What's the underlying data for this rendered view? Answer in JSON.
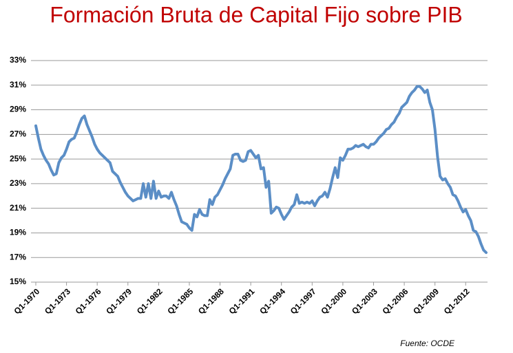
{
  "chart_data": {
    "type": "line",
    "title": "Formación Bruta de Capital Fijo sobre PIB",
    "annotation": "Fuente: OCDE",
    "title_color": "#c00000",
    "categories": [
      "Q1-1970",
      null,
      null,
      null,
      null,
      null,
      null,
      null,
      null,
      null,
      null,
      null,
      "Q1-1973",
      null,
      null,
      null,
      null,
      null,
      null,
      null,
      null,
      null,
      null,
      null,
      "Q1-1976",
      null,
      null,
      null,
      null,
      null,
      null,
      null,
      null,
      null,
      null,
      null,
      "Q1-1979",
      null,
      null,
      null,
      null,
      null,
      null,
      null,
      null,
      null,
      null,
      null,
      "Q1-1982",
      null,
      null,
      null,
      null,
      null,
      null,
      null,
      null,
      null,
      null,
      null,
      "Q1-1985",
      null,
      null,
      null,
      null,
      null,
      null,
      null,
      null,
      null,
      null,
      null,
      "Q1-1988",
      null,
      null,
      null,
      null,
      null,
      null,
      null,
      null,
      null,
      null,
      null,
      "Q1-1991",
      null,
      null,
      null,
      null,
      null,
      null,
      null,
      null,
      null,
      null,
      null,
      "Q1-1994",
      null,
      null,
      null,
      null,
      null,
      null,
      null,
      null,
      null,
      null,
      null,
      "Q1-1997",
      null,
      null,
      null,
      null,
      null,
      null,
      null,
      null,
      null,
      null,
      null,
      "Q1-2000",
      null,
      null,
      null,
      null,
      null,
      null,
      null,
      null,
      null,
      null,
      null,
      "Q1-2003",
      null,
      null,
      null,
      null,
      null,
      null,
      null,
      null,
      null,
      null,
      null,
      "Q1-2006",
      null,
      null,
      null,
      null,
      null,
      null,
      null,
      null,
      null,
      null,
      null,
      "Q1-2009",
      null,
      null,
      null,
      null,
      null,
      null,
      null,
      null,
      null,
      null,
      null,
      "Q1-2012",
      null,
      null,
      null,
      null,
      null,
      null,
      null,
      null
    ],
    "series": [
      {
        "color": "#5b8ec6",
        "values": [
          27.7,
          26.7,
          25.8,
          25.3,
          24.9,
          24.6,
          24.1,
          23.7,
          23.8,
          24.7,
          25.1,
          25.3,
          25.8,
          26.4,
          26.6,
          26.7,
          27.2,
          27.8,
          28.3,
          28.5,
          27.8,
          27.3,
          26.8,
          26.2,
          25.8,
          25.5,
          25.3,
          25.1,
          24.9,
          24.7,
          24.0,
          23.8,
          23.6,
          23.1,
          22.7,
          22.3,
          22.0,
          21.8,
          21.6,
          21.7,
          21.8,
          21.8,
          23.0,
          21.9,
          23.0,
          21.8,
          23.2,
          21.8,
          22.4,
          21.9,
          22.0,
          22.0,
          21.8,
          22.3,
          21.7,
          21.2,
          20.5,
          19.9,
          19.8,
          19.7,
          19.4,
          19.2,
          20.5,
          20.3,
          20.9,
          20.5,
          20.4,
          20.4,
          21.7,
          21.3,
          21.9,
          22.1,
          22.5,
          22.9,
          23.4,
          23.8,
          24.2,
          25.3,
          25.4,
          25.4,
          24.9,
          24.8,
          24.9,
          25.6,
          25.7,
          25.4,
          25.1,
          25.3,
          24.2,
          24.3,
          22.7,
          23.2,
          20.6,
          20.8,
          21.1,
          21.0,
          20.5,
          20.1,
          20.4,
          20.7,
          21.1,
          21.3,
          22.1,
          21.4,
          21.5,
          21.4,
          21.5,
          21.4,
          21.6,
          21.2,
          21.6,
          21.9,
          22.0,
          22.3,
          21.9,
          22.6,
          23.5,
          24.3,
          23.5,
          25.1,
          24.9,
          25.3,
          25.8,
          25.8,
          25.9,
          26.1,
          26.0,
          26.1,
          26.2,
          26.0,
          25.9,
          26.2,
          26.2,
          26.4,
          26.7,
          26.9,
          27.1,
          27.4,
          27.5,
          27.8,
          28.0,
          28.4,
          28.7,
          29.2,
          29.4,
          29.6,
          30.1,
          30.4,
          30.6,
          30.9,
          30.9,
          30.7,
          30.4,
          30.6,
          29.6,
          29.0,
          27.4,
          25.2,
          23.6,
          23.3,
          23.4,
          23.0,
          22.7,
          22.1,
          22.0,
          21.6,
          21.1,
          20.7,
          20.9,
          20.4,
          20.0,
          19.2,
          19.1,
          18.7,
          18.1,
          17.6,
          17.4
        ]
      }
    ],
    "ylim": [
      15,
      33
    ],
    "yticks": [
      {
        "value": 15,
        "label": "15%"
      },
      {
        "value": 17,
        "label": "17%"
      },
      {
        "value": 19,
        "label": "19%"
      },
      {
        "value": 21,
        "label": "21%"
      },
      {
        "value": 23,
        "label": "23%"
      },
      {
        "value": 25,
        "label": "25%"
      },
      {
        "value": 27,
        "label": "27%"
      },
      {
        "value": 29,
        "label": "29%"
      },
      {
        "value": 31,
        "label": "31%"
      },
      {
        "value": 33,
        "label": "33%"
      }
    ],
    "grid": true
  }
}
